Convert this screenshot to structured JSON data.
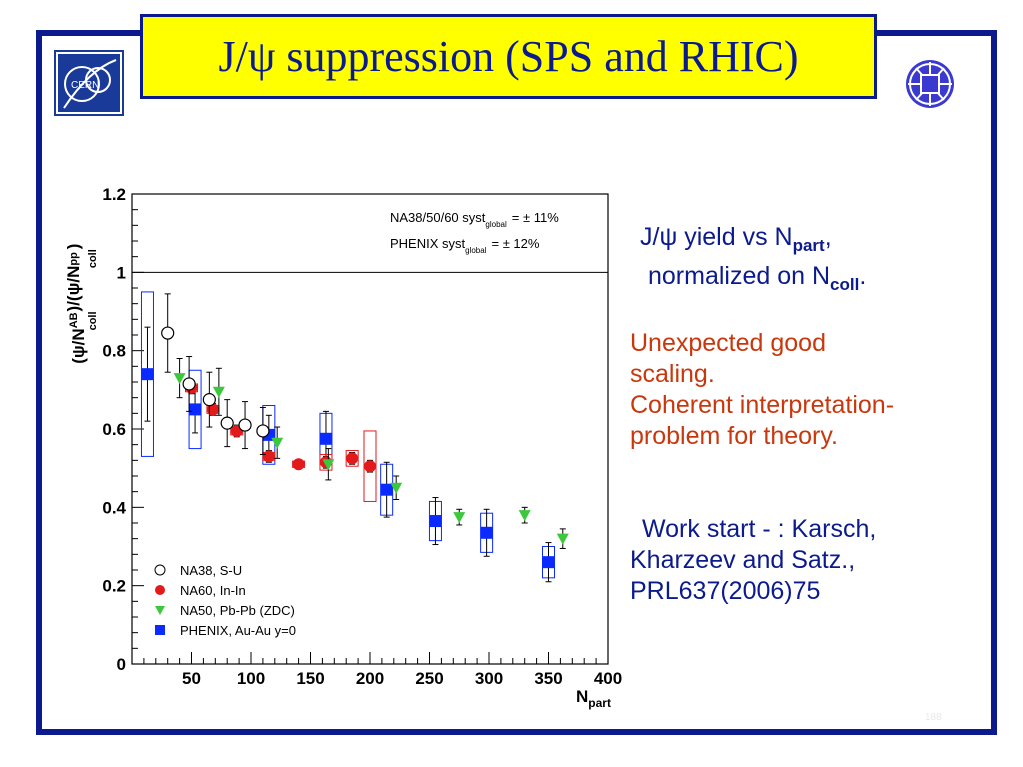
{
  "slide": {
    "title": "J/ψ suppression (SPS and RHIC)",
    "logos": {
      "left": "cern-logo",
      "right": "institute-logo",
      "left_text": "CERN"
    },
    "page_number": "188",
    "notes": {
      "yield_prefix": "J/ψ yield vs N",
      "yield_sub": "part",
      "yield_suffix": ",",
      "norm_prefix": "normalized on N",
      "norm_sub": "coll",
      "norm_suffix": ".",
      "red_1": "Unexpected good",
      "red_2": "scaling.",
      "red_3": "Coherent interpretation-",
      "red_4": "problem for theory.",
      "ref_1": "Work start - : Karsch,",
      "ref_2": "Kharzeev and Satz.,",
      "ref_3": "PRL637(2006)75"
    },
    "colors": {
      "frame": "#0b1a8c",
      "title_bg": "#ffff00",
      "red_text": "#c8380c"
    }
  },
  "chart_data": {
    "type": "scatter",
    "xlabel_main": "N",
    "xlabel_sub": "part",
    "ylabel_plain": "(ψ/N",
    "ylabel_sup1": "AB",
    "ylabel_sub1": "coll",
    "ylabel_mid": ")/(ψ/N",
    "ylabel_sup2": "pp",
    "ylabel_sub2": "coll",
    "ylabel_end": ")",
    "xlim": [
      0,
      400
    ],
    "ylim": [
      0,
      1.2
    ],
    "xticks": [
      50,
      100,
      150,
      200,
      250,
      300,
      350,
      400
    ],
    "yticks": [
      0,
      0.2,
      0.4,
      0.6,
      0.8,
      1,
      1.2
    ],
    "reference_line": 1,
    "annotations": [
      {
        "text": "NA38/50/60 syst",
        "sub": "global",
        "tail": "= ± 11%"
      },
      {
        "text": "PHENIX syst",
        "sub": "global",
        "tail": "= ± 12%"
      }
    ],
    "legend_position": "bottom-left",
    "series": [
      {
        "name": "NA38, S-U",
        "marker": "open-circle",
        "color": "#000000",
        "points": [
          {
            "x": 30,
            "y": 0.845,
            "err": 0.1
          },
          {
            "x": 48,
            "y": 0.715,
            "err": 0.07
          },
          {
            "x": 65,
            "y": 0.675,
            "err": 0.07
          },
          {
            "x": 80,
            "y": 0.615,
            "err": 0.06
          },
          {
            "x": 95,
            "y": 0.61,
            "err": 0.06
          },
          {
            "x": 110,
            "y": 0.595,
            "err": 0.06
          }
        ]
      },
      {
        "name": "NA60, In-In",
        "marker": "filled-circle",
        "color": "#e31a1c",
        "points": [
          {
            "x": 50,
            "y": 0.705,
            "err": 0.015,
            "syst": 0.01
          },
          {
            "x": 68,
            "y": 0.65,
            "err": 0.015,
            "syst": 0.01
          },
          {
            "x": 88,
            "y": 0.595,
            "err": 0.015,
            "syst": 0.01
          },
          {
            "x": 115,
            "y": 0.53,
            "err": 0.015,
            "syst": 0.01
          },
          {
            "x": 140,
            "y": 0.51,
            "err": 0.012,
            "syst": 0.008
          },
          {
            "x": 163,
            "y": 0.515,
            "err": 0.015,
            "syst": 0.02
          },
          {
            "x": 185,
            "y": 0.525,
            "err": 0.015,
            "syst": 0.02
          },
          {
            "x": 200,
            "y": 0.505,
            "err": 0.015,
            "syst": 0.09
          }
        ]
      },
      {
        "name": "NA50, Pb-Pb (ZDC)",
        "marker": "triangle-down",
        "color": "#3cc83c",
        "points": [
          {
            "x": 40,
            "y": 0.73,
            "err": 0.05
          },
          {
            "x": 73,
            "y": 0.695,
            "err": 0.06
          },
          {
            "x": 122,
            "y": 0.565,
            "err": 0.04
          },
          {
            "x": 165,
            "y": 0.51,
            "err": 0.04
          },
          {
            "x": 222,
            "y": 0.45,
            "err": 0.03
          },
          {
            "x": 275,
            "y": 0.375,
            "err": 0.02
          },
          {
            "x": 330,
            "y": 0.38,
            "err": 0.02
          },
          {
            "x": 362,
            "y": 0.32,
            "err": 0.025
          }
        ]
      },
      {
        "name": "PHENIX, Au-Au y=0",
        "marker": "filled-square",
        "color": "#0a2aff",
        "points": [
          {
            "x": 13,
            "y": 0.74,
            "err": 0.12,
            "syst": 0.21
          },
          {
            "x": 53,
            "y": 0.65,
            "err": 0.06,
            "syst": 0.1
          },
          {
            "x": 115,
            "y": 0.585,
            "err": 0.05,
            "syst": 0.075
          },
          {
            "x": 163,
            "y": 0.575,
            "err": 0.07,
            "syst": 0.065
          },
          {
            "x": 214,
            "y": 0.445,
            "err": 0.07,
            "syst": 0.065
          },
          {
            "x": 255,
            "y": 0.365,
            "err": 0.06,
            "syst": 0.05
          },
          {
            "x": 298,
            "y": 0.335,
            "err": 0.06,
            "syst": 0.05
          },
          {
            "x": 350,
            "y": 0.26,
            "err": 0.05,
            "syst": 0.04
          }
        ]
      }
    ]
  }
}
